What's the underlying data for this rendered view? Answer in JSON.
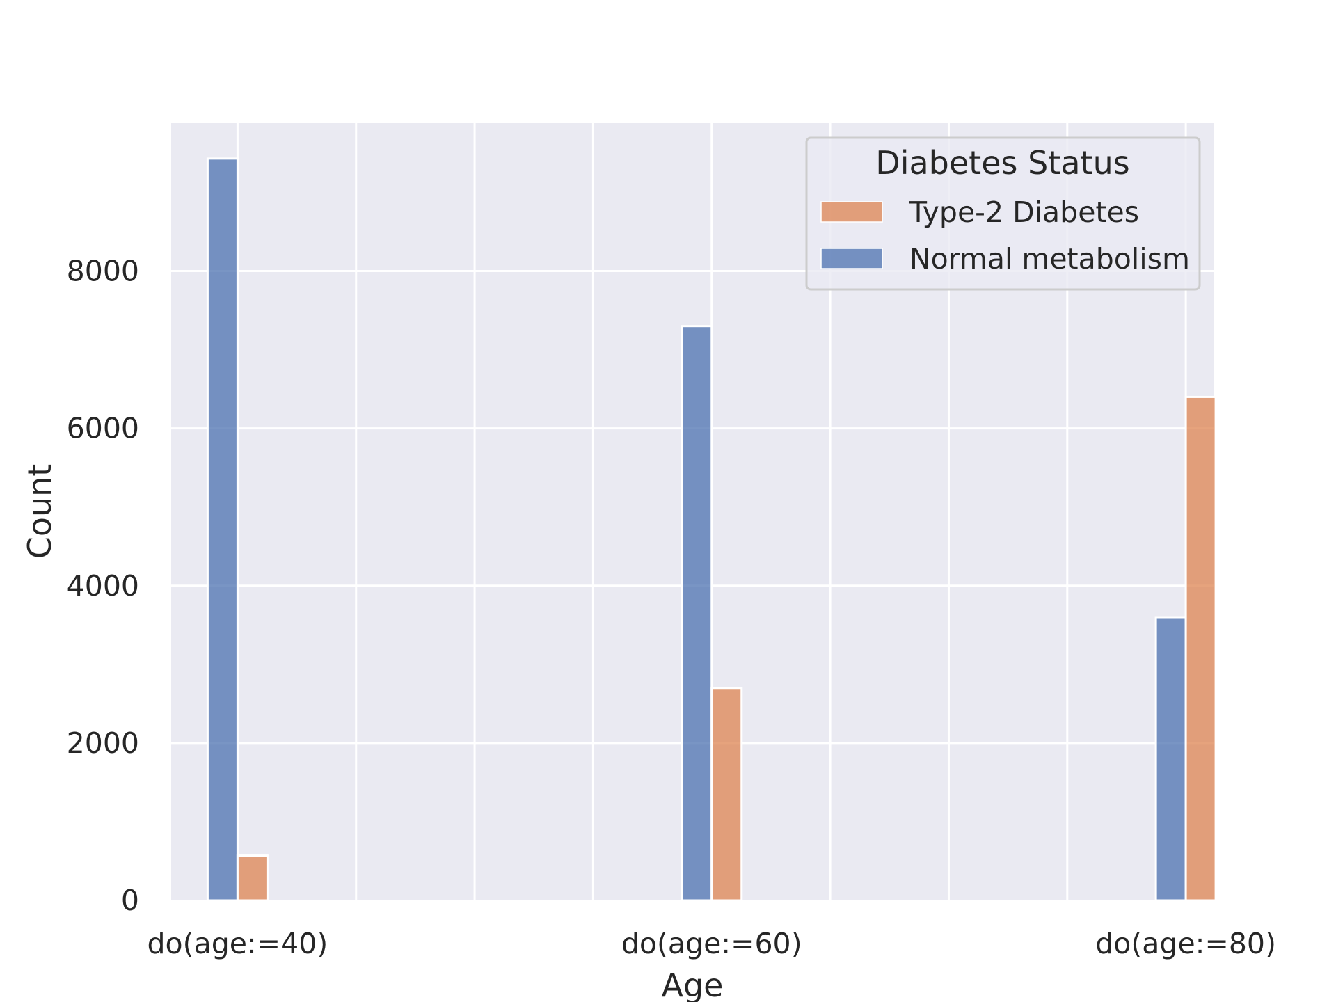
{
  "chart_data": {
    "type": "bar",
    "categories": [
      "do(age:=40)",
      "do(age:=60)",
      "do(age:=80)"
    ],
    "series": [
      {
        "name": "Normal metabolism",
        "color": "#4c72b0",
        "values": [
          9430,
          7300,
          3600
        ]
      },
      {
        "name": "Type-2 Diabetes",
        "color": "#dd8452",
        "values": [
          570,
          2700,
          6400
        ]
      }
    ],
    "title": "",
    "xlabel": "Age",
    "ylabel": "Count",
    "ylim": [
      0,
      9880
    ],
    "yticks": [
      0,
      2000,
      4000,
      6000,
      8000
    ],
    "grid": true,
    "legend": {
      "title": "Diabetes Status",
      "placement": "top-right",
      "entries": [
        "Type-2 Diabetes",
        "Normal metabolism"
      ]
    },
    "colors": {
      "background": "#eaeaf2",
      "grid": "#ffffff",
      "text": "#262626"
    }
  }
}
